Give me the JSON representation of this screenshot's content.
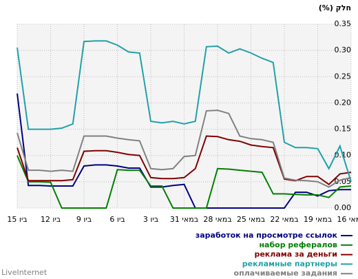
{
  "chart_data": {
    "type": "line",
    "title": "חלק (%)",
    "brand": "LiveInternet",
    "categories": [
      "15 ביו",
      null,
      null,
      "12 ביו",
      null,
      null,
      "9 ביו",
      null,
      null,
      "6 ביו",
      null,
      null,
      "3 ביו",
      null,
      null,
      "31 במאי",
      null,
      null,
      "28 במאי",
      null,
      null,
      "25 במאי",
      null,
      null,
      "22 במאי",
      null,
      null,
      "19 במאי",
      null,
      null,
      "16 במאי"
    ],
    "ylim": [
      0,
      0.35
    ],
    "yticks": [
      {
        "value": 0,
        "label": "0.00"
      },
      {
        "value": 0.05,
        "label": "0.05"
      },
      {
        "value": 0.1,
        "label": "0.10"
      },
      {
        "value": 0.15,
        "label": "0.15"
      },
      {
        "value": 0.2,
        "label": "0.20"
      },
      {
        "value": 0.25,
        "label": "0.25"
      },
      {
        "value": 0.3,
        "label": "0.30"
      },
      {
        "value": 0.35,
        "label": "0.35"
      }
    ],
    "grid": true,
    "legend": "bottom-right",
    "series": [
      {
        "name": "заработок на просмотре ссылок",
        "color": "#000080",
        "values": [
          0.218,
          0.043,
          0.043,
          0.042,
          0.042,
          0.042,
          0.08,
          0.082,
          0.082,
          0.08,
          0.076,
          0.076,
          0.04,
          0.04,
          0.043,
          0.045,
          0,
          0,
          0,
          0,
          0,
          0,
          0,
          0,
          0,
          0.03,
          0.03,
          0.023,
          0.033,
          0.035,
          0.035
        ]
      },
      {
        "name": "набор рефералов",
        "color": "#008000",
        "values": [
          0.1,
          0.05,
          0.05,
          0.049,
          0,
          0,
          0,
          0,
          0,
          0.073,
          0.072,
          0.072,
          0.042,
          0.042,
          0,
          0,
          0,
          0,
          0.075,
          0.074,
          0.072,
          0.07,
          0.068,
          0.027,
          0.027,
          0.026,
          0.025,
          0.025,
          0.02,
          0.04,
          0.042
        ]
      },
      {
        "name": "реклама за деньги",
        "color": "#800000",
        "values": [
          0.115,
          0.052,
          0.052,
          0.052,
          0.052,
          0.054,
          0.108,
          0.109,
          0.109,
          0.106,
          0.102,
          0.1,
          0.058,
          0.056,
          0.056,
          0.058,
          0.075,
          0.137,
          0.136,
          0.13,
          0.127,
          0.12,
          0.117,
          0.115,
          0.055,
          0.052,
          0.06,
          0.06,
          0.045,
          0.065,
          0.068
        ]
      },
      {
        "name": "рекламные партнеры",
        "color": "#20a0a8",
        "values": [
          0.305,
          0.15,
          0.15,
          0.15,
          0.152,
          0.16,
          0.317,
          0.318,
          0.318,
          0.31,
          0.297,
          0.295,
          0.165,
          0.162,
          0.165,
          0.16,
          0.165,
          0.307,
          0.308,
          0.295,
          0.303,
          0.295,
          0.285,
          0.277,
          0.125,
          0.115,
          0.115,
          0.113,
          0.075,
          0.118,
          0.05
        ]
      },
      {
        "name": "оплачиваемые задания",
        "color": "#808080",
        "values": [
          0.143,
          0.072,
          0.072,
          0.07,
          0.072,
          0.07,
          0.137,
          0.137,
          0.137,
          0.133,
          0.13,
          0.128,
          0.075,
          0.073,
          0.075,
          0.098,
          0.1,
          0.185,
          0.186,
          0.18,
          0.137,
          0.132,
          0.13,
          0.125,
          0.057,
          0.053,
          0.052,
          0.05,
          0.04,
          0.053,
          0.058
        ]
      }
    ]
  }
}
